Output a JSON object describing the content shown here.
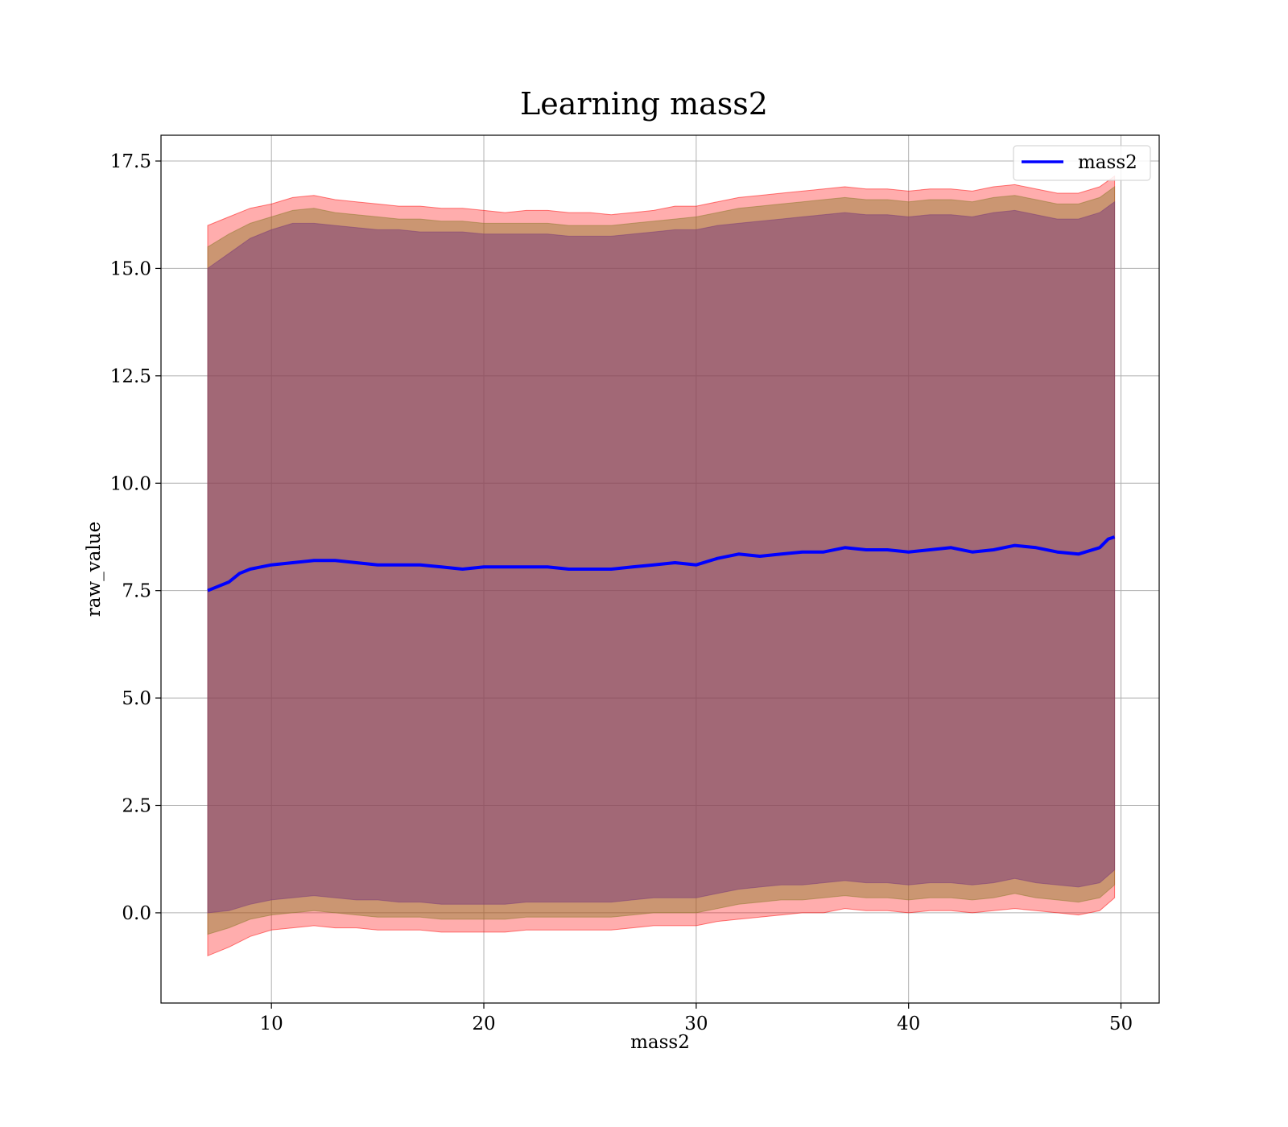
{
  "chart_data": {
    "type": "area",
    "title": "Learning mass2",
    "xlabel": "mass2",
    "ylabel": "raw_value",
    "xlim": [
      4.8,
      51.8
    ],
    "ylim": [
      -2.1,
      18.1
    ],
    "xticks": [
      10,
      20,
      30,
      40,
      50
    ],
    "xtick_labels": [
      "10",
      "20",
      "30",
      "40",
      "50"
    ],
    "yticks": [
      0.0,
      2.5,
      5.0,
      7.5,
      10.0,
      12.5,
      15.0,
      17.5
    ],
    "ytick_labels": [
      "0.0",
      "2.5",
      "5.0",
      "7.5",
      "10.0",
      "12.5",
      "15.0",
      "17.5"
    ],
    "grid": true,
    "legend_position": "top-right",
    "series": [
      {
        "name": "mass2",
        "color": "#0000ff",
        "x": [
          7.0,
          7.5,
          8.0,
          8.5,
          9.0,
          9.5,
          10,
          11,
          12,
          13,
          14,
          15,
          16,
          17,
          18,
          19,
          20,
          21,
          22,
          23,
          24,
          25,
          26,
          27,
          28,
          29,
          30,
          31,
          32,
          33,
          34,
          35,
          36,
          37,
          38,
          39,
          40,
          41,
          42,
          43,
          44,
          45,
          46,
          47,
          48,
          49,
          49.4,
          49.7
        ],
        "y": [
          7.5,
          7.6,
          7.7,
          7.9,
          8.0,
          8.05,
          8.1,
          8.15,
          8.2,
          8.2,
          8.15,
          8.1,
          8.1,
          8.1,
          8.05,
          8.0,
          8.05,
          8.05,
          8.05,
          8.05,
          8.0,
          8.0,
          8.0,
          8.05,
          8.1,
          8.15,
          8.1,
          8.25,
          8.35,
          8.3,
          8.35,
          8.4,
          8.4,
          8.5,
          8.45,
          8.45,
          8.4,
          8.45,
          8.5,
          8.4,
          8.45,
          8.55,
          8.5,
          8.4,
          8.35,
          8.5,
          8.7,
          8.75
        ]
      }
    ],
    "bands": [
      {
        "color": "#ff0000",
        "opacity": 0.32,
        "x": [
          7.0,
          8.0,
          9.0,
          10,
          11,
          12,
          13,
          14,
          15,
          16,
          17,
          18,
          19,
          20,
          21,
          22,
          23,
          24,
          25,
          26,
          27,
          28,
          29,
          30,
          31,
          32,
          33,
          34,
          35,
          36,
          37,
          38,
          39,
          40,
          41,
          42,
          43,
          44,
          45,
          46,
          47,
          48,
          49,
          49.7
        ],
        "upper": [
          16.0,
          16.2,
          16.4,
          16.5,
          16.65,
          16.7,
          16.6,
          16.55,
          16.5,
          16.45,
          16.45,
          16.4,
          16.4,
          16.35,
          16.3,
          16.35,
          16.35,
          16.3,
          16.3,
          16.25,
          16.3,
          16.35,
          16.45,
          16.45,
          16.55,
          16.65,
          16.7,
          16.75,
          16.8,
          16.85,
          16.9,
          16.85,
          16.85,
          16.8,
          16.85,
          16.85,
          16.8,
          16.9,
          16.95,
          16.85,
          16.75,
          16.75,
          16.9,
          17.15
        ],
        "lower": [
          -1.0,
          -0.8,
          -0.55,
          -0.4,
          -0.35,
          -0.3,
          -0.35,
          -0.35,
          -0.4,
          -0.4,
          -0.4,
          -0.45,
          -0.45,
          -0.45,
          -0.45,
          -0.4,
          -0.4,
          -0.4,
          -0.4,
          -0.4,
          -0.35,
          -0.3,
          -0.3,
          -0.3,
          -0.2,
          -0.15,
          -0.1,
          -0.05,
          0.0,
          0.0,
          0.1,
          0.05,
          0.05,
          0.0,
          0.05,
          0.05,
          0.0,
          0.05,
          0.1,
          0.05,
          0.0,
          -0.05,
          0.05,
          0.35
        ]
      },
      {
        "color": "#8b7a2a",
        "opacity": 0.45,
        "x": [
          7.0,
          8.0,
          9.0,
          10,
          11,
          12,
          13,
          14,
          15,
          16,
          17,
          18,
          19,
          20,
          21,
          22,
          23,
          24,
          25,
          26,
          27,
          28,
          29,
          30,
          31,
          32,
          33,
          34,
          35,
          36,
          37,
          38,
          39,
          40,
          41,
          42,
          43,
          44,
          45,
          46,
          47,
          48,
          49,
          49.7
        ],
        "upper": [
          15.5,
          15.8,
          16.05,
          16.2,
          16.35,
          16.4,
          16.3,
          16.25,
          16.2,
          16.15,
          16.15,
          16.1,
          16.1,
          16.05,
          16.05,
          16.05,
          16.05,
          16.0,
          16.0,
          16.0,
          16.05,
          16.1,
          16.15,
          16.2,
          16.3,
          16.4,
          16.45,
          16.5,
          16.55,
          16.6,
          16.65,
          16.6,
          16.6,
          16.55,
          16.6,
          16.6,
          16.55,
          16.65,
          16.7,
          16.6,
          16.5,
          16.5,
          16.65,
          16.9
        ],
        "lower": [
          -0.5,
          -0.35,
          -0.15,
          -0.05,
          0.0,
          0.05,
          0.0,
          -0.05,
          -0.1,
          -0.1,
          -0.1,
          -0.15,
          -0.15,
          -0.15,
          -0.15,
          -0.1,
          -0.1,
          -0.1,
          -0.1,
          -0.1,
          -0.05,
          0.0,
          0.0,
          0.0,
          0.1,
          0.2,
          0.25,
          0.3,
          0.3,
          0.35,
          0.4,
          0.35,
          0.35,
          0.3,
          0.35,
          0.35,
          0.3,
          0.35,
          0.45,
          0.35,
          0.3,
          0.25,
          0.35,
          0.65
        ]
      },
      {
        "color": "#7a3a7a",
        "opacity": 0.5,
        "x": [
          7.0,
          8.0,
          9.0,
          10,
          11,
          12,
          13,
          14,
          15,
          16,
          17,
          18,
          19,
          20,
          21,
          22,
          23,
          24,
          25,
          26,
          27,
          28,
          29,
          30,
          31,
          32,
          33,
          34,
          35,
          36,
          37,
          38,
          39,
          40,
          41,
          42,
          43,
          44,
          45,
          46,
          47,
          48,
          49,
          49.7
        ],
        "upper": [
          15.0,
          15.35,
          15.7,
          15.9,
          16.05,
          16.05,
          16.0,
          15.95,
          15.9,
          15.9,
          15.85,
          15.85,
          15.85,
          15.8,
          15.8,
          15.8,
          15.8,
          15.75,
          15.75,
          15.75,
          15.8,
          15.85,
          15.9,
          15.9,
          16.0,
          16.05,
          16.1,
          16.15,
          16.2,
          16.25,
          16.3,
          16.25,
          16.25,
          16.2,
          16.25,
          16.25,
          16.2,
          16.3,
          16.35,
          16.25,
          16.15,
          16.15,
          16.3,
          16.55
        ],
        "lower": [
          0.0,
          0.05,
          0.2,
          0.3,
          0.35,
          0.4,
          0.35,
          0.3,
          0.3,
          0.25,
          0.25,
          0.2,
          0.2,
          0.2,
          0.2,
          0.25,
          0.25,
          0.25,
          0.25,
          0.25,
          0.3,
          0.35,
          0.35,
          0.35,
          0.45,
          0.55,
          0.6,
          0.65,
          0.65,
          0.7,
          0.75,
          0.7,
          0.7,
          0.65,
          0.7,
          0.7,
          0.65,
          0.7,
          0.8,
          0.7,
          0.65,
          0.6,
          0.7,
          1.0
        ]
      }
    ]
  }
}
